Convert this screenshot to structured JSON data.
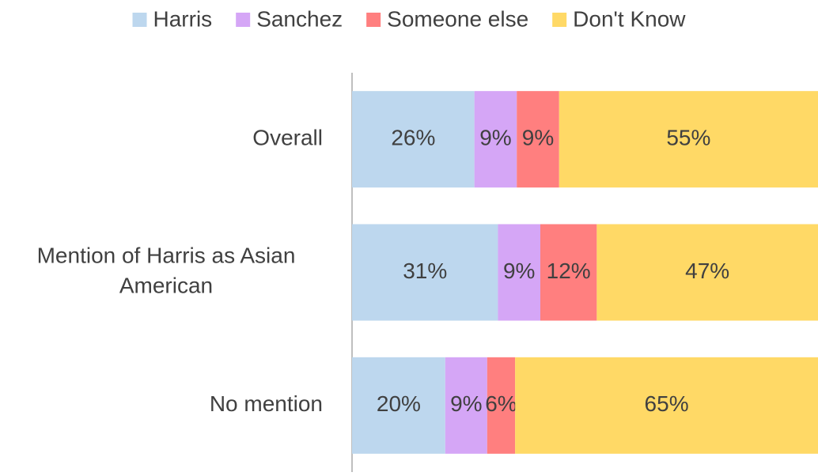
{
  "chart_data": {
    "type": "bar",
    "orientation": "horizontal",
    "stacked": "percent",
    "categories": [
      "Overall",
      "Mention of Harris as Asian American",
      "No mention"
    ],
    "series": [
      {
        "name": "Harris",
        "color": "#bdd7ee",
        "values": [
          26,
          31,
          20
        ],
        "value_labels": [
          "26%",
          "31%",
          "20%"
        ]
      },
      {
        "name": "Sanchez",
        "color": "#d5a6f6",
        "values": [
          9,
          9,
          9
        ],
        "value_labels": [
          "9%",
          "9%",
          "9%"
        ]
      },
      {
        "name": "Someone else",
        "color": "#ff7f7f",
        "values": [
          9,
          12,
          6
        ],
        "value_labels": [
          "9%",
          "12%",
          "6%"
        ]
      },
      {
        "name": "Don't Know",
        "color": "#ffd966",
        "values": [
          55,
          47,
          65
        ],
        "value_labels": [
          "55%",
          "47%",
          "65%"
        ]
      }
    ],
    "legend": "top"
  }
}
